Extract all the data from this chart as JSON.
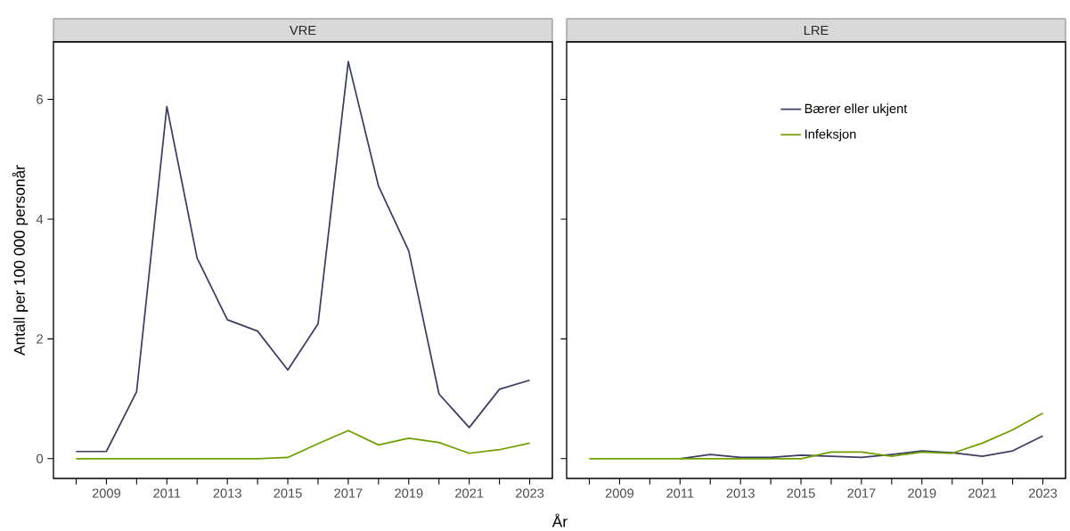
{
  "chart_data": [
    {
      "type": "line",
      "title": "VRE",
      "xlabel": "År",
      "ylabel": "Antall per 100 000 personår",
      "x": [
        2008,
        2009,
        2010,
        2011,
        2012,
        2013,
        2014,
        2015,
        2016,
        2017,
        2018,
        2019,
        2020,
        2021,
        2022,
        2023
      ],
      "series": [
        {
          "color": "#3b3d63",
          "values": [
            0.12,
            0.12,
            1.12,
            5.88,
            3.35,
            2.32,
            2.13,
            1.48,
            2.25,
            6.63,
            4.55,
            3.47,
            1.08,
            0.52,
            1.16,
            1.31
          ]
        },
        {
          "color": "#6f9e00",
          "values": [
            0,
            0,
            0,
            0,
            0,
            0,
            0,
            0.02,
            0.25,
            0.47,
            0.23,
            0.34,
            0.27,
            0.09,
            0.15,
            0.26
          ]
        }
      ],
      "xlim": [
        2007.25,
        2023.75
      ],
      "ylim": [
        -0.33,
        6.96
      ],
      "xticks": [
        {
          "value": 2008,
          "label": null
        },
        2009,
        {
          "value": 2010,
          "label": null
        },
        2011,
        {
          "value": 2012,
          "label": null
        },
        2013,
        {
          "value": 2014,
          "label": null
        },
        2015,
        {
          "value": 2016,
          "label": null
        },
        2017,
        {
          "value": 2018,
          "label": null
        },
        2019,
        {
          "value": 2020,
          "label": null
        },
        2021,
        {
          "value": 2022,
          "label": null
        },
        2023
      ],
      "yticks": [
        0,
        2,
        4,
        6
      ],
      "grid": false,
      "legend": false
    },
    {
      "type": "line",
      "title": "LRE",
      "x": [
        2008,
        2009,
        2010,
        2011,
        2012,
        2013,
        2014,
        2015,
        2016,
        2017,
        2018,
        2019,
        2020,
        2021,
        2022,
        2023
      ],
      "series": [
        {
          "name": "Bærer eller ukjent",
          "color": "#3b3d63",
          "values": [
            null,
            null,
            null,
            0,
            0.07,
            0.02,
            0.02,
            0.06,
            0.04,
            0.02,
            0.07,
            0.13,
            0.1,
            0.04,
            0.13,
            0.38
          ]
        },
        {
          "name": "Infeksjon",
          "color": "#6f9e00",
          "values": [
            0,
            0,
            0,
            0,
            0,
            0,
            0,
            0,
            0.11,
            0.11,
            0.04,
            0.11,
            0.09,
            0.26,
            0.48,
            0.76
          ]
        }
      ],
      "xlim": [
        2007.25,
        2023.75
      ],
      "ylim": [
        -0.33,
        6.96
      ],
      "xticks": [
        {
          "value": 2008,
          "label": null
        },
        2009,
        {
          "value": 2010,
          "label": null
        },
        2011,
        {
          "value": 2012,
          "label": null
        },
        2013,
        {
          "value": 2014,
          "label": null
        },
        2015,
        {
          "value": 2016,
          "label": null
        },
        2017,
        {
          "value": 2018,
          "label": null
        },
        2019,
        {
          "value": 2020,
          "label": null
        },
        2021,
        {
          "value": 2022,
          "label": null
        },
        2023
      ],
      "yticks": [
        0,
        2,
        4,
        6
      ],
      "grid": false,
      "legend": "top",
      "tick_labels": "x"
    }
  ]
}
